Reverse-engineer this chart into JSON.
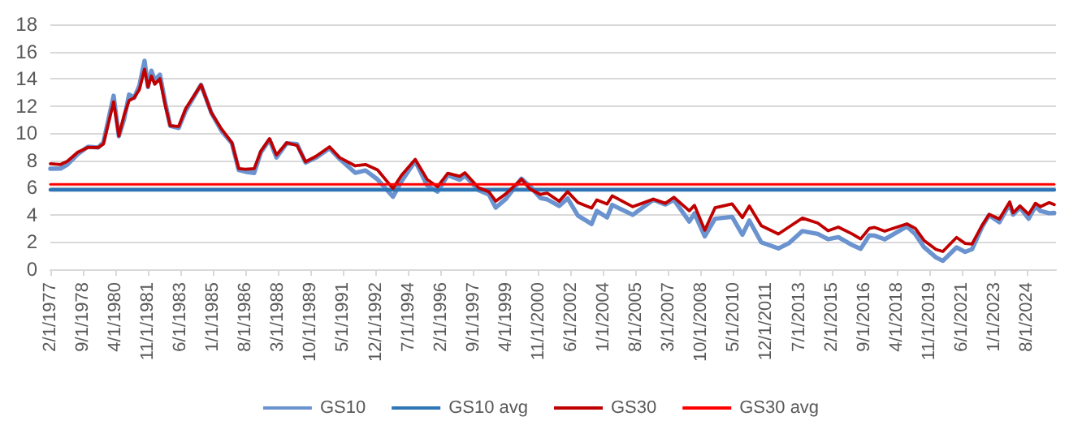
{
  "chart_data": {
    "type": "line",
    "xlim": [
      "1977-02",
      "2026-01"
    ],
    "xticks": [
      {
        "value": "1977-02",
        "label": "2/1/1977"
      },
      {
        "value": "1978-09",
        "label": "9/1/1978"
      },
      {
        "value": "1980-04",
        "label": "4/1/1980"
      },
      {
        "value": "1981-11",
        "label": "11/1/1981"
      },
      {
        "value": "1983-06",
        "label": "6/1/1983"
      },
      {
        "value": "1985-01",
        "label": "1/1/1985"
      },
      {
        "value": "1986-08",
        "label": "8/1/1986"
      },
      {
        "value": "1988-03",
        "label": "3/1/1988"
      },
      {
        "value": "1989-10",
        "label": "10/1/1989"
      },
      {
        "value": "1991-05",
        "label": "5/1/1991"
      },
      {
        "value": "1992-12",
        "label": "12/1/1992"
      },
      {
        "value": "1994-07",
        "label": "7/1/1994"
      },
      {
        "value": "1996-02",
        "label": "2/1/1996"
      },
      {
        "value": "1997-09",
        "label": "9/1/1997"
      },
      {
        "value": "1999-04",
        "label": "4/1/1999"
      },
      {
        "value": "2000-11",
        "label": "11/1/2000"
      },
      {
        "value": "2002-06",
        "label": "6/1/2002"
      },
      {
        "value": "2004-01",
        "label": "1/1/2004"
      },
      {
        "value": "2005-08",
        "label": "8/1/2005"
      },
      {
        "value": "2007-03",
        "label": "3/1/2007"
      },
      {
        "value": "2008-10",
        "label": "10/1/2008"
      },
      {
        "value": "2010-05",
        "label": "5/1/2010"
      },
      {
        "value": "2011-12",
        "label": "12/1/2011"
      },
      {
        "value": "2013-07",
        "label": "7/1/2013"
      },
      {
        "value": "2015-02",
        "label": "2/1/2015"
      },
      {
        "value": "2016-09",
        "label": "9/1/2016"
      },
      {
        "value": "2018-04",
        "label": "4/1/2018"
      },
      {
        "value": "2019-11",
        "label": "11/1/2019"
      },
      {
        "value": "2021-06",
        "label": "6/1/2021"
      },
      {
        "value": "2023-01",
        "label": "1/1/2023"
      },
      {
        "value": "2024-08",
        "label": "8/1/2024"
      }
    ],
    "ylim": [
      0,
      18
    ],
    "yticks": [
      0,
      2,
      4,
      6,
      8,
      10,
      12,
      14,
      16,
      18
    ],
    "grid": "y",
    "legend": "bottom",
    "marker": "none",
    "line_style": "solid",
    "series": [
      {
        "name": "GS10",
        "color": "#6a93cf",
        "x": [
          "1977-02",
          "1977-08",
          "1977-12",
          "1978-06",
          "1978-12",
          "1979-06",
          "1979-09",
          "1980-03",
          "1980-06",
          "1980-09",
          "1980-12",
          "1981-03",
          "1981-06",
          "1981-09",
          "1981-11",
          "1982-01",
          "1982-03",
          "1982-06",
          "1982-09",
          "1982-12",
          "1983-05",
          "1983-09",
          "1984-06",
          "1984-12",
          "1985-06",
          "1985-12",
          "1986-04",
          "1986-08",
          "1987-01",
          "1987-05",
          "1987-10",
          "1988-02",
          "1988-08",
          "1989-02",
          "1989-07",
          "1990-01",
          "1990-09",
          "1991-03",
          "1991-12",
          "1992-06",
          "1993-01",
          "1993-10",
          "1994-03",
          "1994-11",
          "1995-06",
          "1995-12",
          "1996-06",
          "1997-01",
          "1997-04",
          "1997-12",
          "1998-06",
          "1998-10",
          "1999-04",
          "2000-01",
          "2000-06",
          "2000-12",
          "2001-04",
          "2001-11",
          "2002-04",
          "2002-10",
          "2003-06",
          "2003-09",
          "2004-03",
          "2004-06",
          "2005-06",
          "2006-06",
          "2007-01",
          "2007-06",
          "2008-03",
          "2008-06",
          "2008-12",
          "2009-06",
          "2010-04",
          "2010-10",
          "2011-02",
          "2011-09",
          "2012-07",
          "2013-01",
          "2013-09",
          "2014-06",
          "2014-12",
          "2015-06",
          "2016-02",
          "2016-07",
          "2016-12",
          "2017-03",
          "2017-09",
          "2018-10",
          "2019-03",
          "2019-08",
          "2020-03",
          "2020-07",
          "2021-03",
          "2021-08",
          "2021-12",
          "2022-06",
          "2022-10",
          "2023-04",
          "2023-10",
          "2023-12",
          "2024-04",
          "2024-09",
          "2025-01",
          "2025-04",
          "2025-09",
          "2025-12"
        ],
        "values": [
          7.39,
          7.4,
          7.69,
          8.46,
          9.01,
          8.95,
          9.33,
          12.75,
          9.78,
          11.0,
          12.84,
          12.6,
          13.5,
          15.32,
          13.39,
          14.59,
          13.9,
          14.3,
          12.3,
          10.54,
          10.38,
          11.65,
          13.56,
          11.5,
          10.16,
          9.26,
          7.3,
          7.17,
          7.08,
          8.6,
          9.52,
          8.21,
          9.26,
          9.2,
          7.84,
          8.2,
          8.89,
          8.1,
          7.09,
          7.26,
          6.6,
          5.33,
          6.46,
          7.96,
          6.17,
          5.71,
          6.91,
          6.58,
          6.89,
          5.81,
          5.5,
          4.53,
          5.18,
          6.66,
          6.1,
          5.24,
          5.14,
          4.65,
          5.21,
          3.94,
          3.33,
          4.29,
          3.81,
          4.73,
          4.0,
          5.11,
          4.76,
          5.1,
          3.51,
          4.1,
          2.42,
          3.72,
          3.85,
          2.54,
          3.58,
          1.98,
          1.53,
          1.91,
          2.81,
          2.6,
          2.21,
          2.36,
          1.78,
          1.5,
          2.49,
          2.48,
          2.2,
          3.15,
          2.57,
          1.63,
          0.87,
          0.62,
          1.61,
          1.28,
          1.47,
          3.14,
          3.98,
          3.46,
          4.8,
          4.02,
          4.54,
          3.72,
          4.63,
          4.28,
          4.12,
          4.14
        ]
      },
      {
        "name": "GS10 avg",
        "color": "#2e75b6",
        "x": [
          "1977-02",
          "2025-12"
        ],
        "values": [
          5.84,
          5.84
        ]
      },
      {
        "name": "GS30",
        "color": "#c00000",
        "x": [
          "1977-02",
          "1977-08",
          "1977-12",
          "1978-06",
          "1978-12",
          "1979-06",
          "1979-09",
          "1980-03",
          "1980-06",
          "1980-09",
          "1980-12",
          "1981-03",
          "1981-06",
          "1981-09",
          "1981-11",
          "1982-01",
          "1982-03",
          "1982-06",
          "1982-09",
          "1982-12",
          "1983-05",
          "1983-09",
          "1984-06",
          "1984-12",
          "1985-06",
          "1985-12",
          "1986-04",
          "1986-08",
          "1987-01",
          "1987-05",
          "1987-10",
          "1988-02",
          "1988-08",
          "1989-02",
          "1989-07",
          "1990-01",
          "1990-09",
          "1991-03",
          "1991-12",
          "1992-06",
          "1993-01",
          "1993-10",
          "1994-03",
          "1994-11",
          "1995-06",
          "1995-12",
          "1996-06",
          "1997-01",
          "1997-04",
          "1997-12",
          "1998-06",
          "1998-10",
          "1999-04",
          "2000-01",
          "2000-06",
          "2000-12",
          "2001-04",
          "2001-11",
          "2002-04",
          "2002-10",
          "2003-06",
          "2003-09",
          "2004-03",
          "2004-06",
          "2005-06",
          "2006-06",
          "2007-01",
          "2007-06",
          "2008-03",
          "2008-06",
          "2008-12",
          "2009-06",
          "2010-04",
          "2010-10",
          "2011-02",
          "2011-09",
          "2012-07",
          "2013-01",
          "2013-09",
          "2014-06",
          "2014-12",
          "2015-06",
          "2016-02",
          "2016-07",
          "2016-12",
          "2017-03",
          "2017-09",
          "2018-10",
          "2019-03",
          "2019-08",
          "2020-03",
          "2020-07",
          "2021-03",
          "2021-08",
          "2021-12",
          "2022-06",
          "2022-10",
          "2023-04",
          "2023-10",
          "2023-12",
          "2024-04",
          "2024-09",
          "2025-01",
          "2025-04",
          "2025-09",
          "2025-12"
        ],
        "values": [
          7.75,
          7.7,
          7.94,
          8.6,
          8.96,
          8.95,
          9.2,
          12.3,
          9.8,
          11.3,
          12.4,
          12.6,
          13.2,
          14.7,
          13.4,
          14.2,
          13.6,
          14.0,
          12.1,
          10.54,
          10.5,
          11.8,
          13.56,
          11.5,
          10.3,
          9.3,
          7.4,
          7.35,
          7.4,
          8.7,
          9.6,
          8.4,
          9.3,
          9.1,
          7.9,
          8.3,
          9.0,
          8.2,
          7.6,
          7.7,
          7.3,
          5.94,
          6.9,
          8.08,
          6.6,
          6.06,
          7.06,
          6.83,
          7.09,
          5.99,
          5.7,
          5.01,
          5.55,
          6.63,
          5.9,
          5.5,
          5.6,
          5.0,
          5.7,
          4.9,
          4.5,
          5.1,
          4.8,
          5.4,
          4.6,
          5.15,
          4.85,
          5.29,
          4.3,
          4.7,
          2.87,
          4.52,
          4.8,
          3.8,
          4.65,
          3.2,
          2.59,
          3.1,
          3.76,
          3.4,
          2.83,
          3.1,
          2.6,
          2.23,
          3.0,
          3.08,
          2.8,
          3.34,
          3.0,
          2.12,
          1.46,
          1.31,
          2.34,
          1.9,
          1.85,
          3.25,
          4.04,
          3.7,
          4.95,
          4.14,
          4.66,
          4.04,
          4.85,
          4.6,
          4.9,
          4.75
        ]
      },
      {
        "name": "GS30 avg",
        "color": "#ff0000",
        "x": [
          "1977-02",
          "2025-12"
        ],
        "values": [
          6.24,
          6.24
        ]
      }
    ]
  }
}
